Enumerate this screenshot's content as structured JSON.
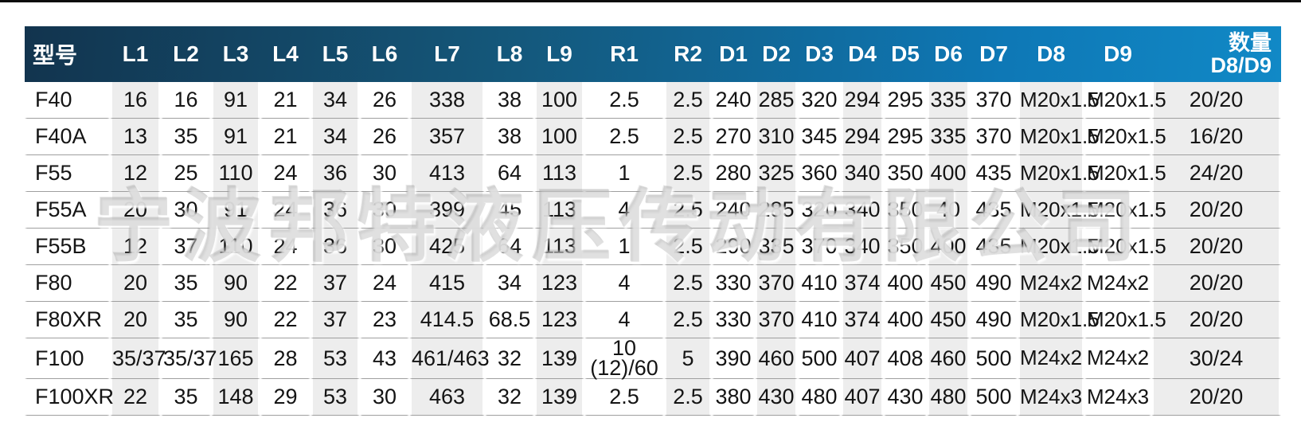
{
  "watermark": "宁波邦特液压传动有限公司",
  "colors": {
    "header_gradient_left": "#12344e",
    "header_gradient_mid": "#14577a",
    "header_gradient_right": "#1189c6",
    "header_text": "#ffffff",
    "column_stripe": "#ededed",
    "row_divider": "#9f9f9f",
    "body_text": "#141414",
    "top_rule": "#0c0c0c"
  },
  "table": {
    "columns": [
      {
        "key": "model",
        "label": "型号"
      },
      {
        "key": "L1",
        "label": "L1"
      },
      {
        "key": "L2",
        "label": "L2"
      },
      {
        "key": "L3",
        "label": "L3"
      },
      {
        "key": "L4",
        "label": "L4"
      },
      {
        "key": "L5",
        "label": "L5"
      },
      {
        "key": "L6",
        "label": "L6"
      },
      {
        "key": "L7",
        "label": "L7"
      },
      {
        "key": "L8",
        "label": "L8"
      },
      {
        "key": "L9",
        "label": "L9"
      },
      {
        "key": "R1",
        "label": "R1"
      },
      {
        "key": "R2",
        "label": "R2"
      },
      {
        "key": "D1",
        "label": "D1"
      },
      {
        "key": "D2",
        "label": "D2"
      },
      {
        "key": "D3",
        "label": "D3"
      },
      {
        "key": "D4",
        "label": "D4"
      },
      {
        "key": "D5",
        "label": "D5"
      },
      {
        "key": "D6",
        "label": "D6"
      },
      {
        "key": "D7",
        "label": "D7"
      },
      {
        "key": "D8",
        "label": "D8"
      },
      {
        "key": "D9",
        "label": "D9"
      },
      {
        "key": "qty",
        "label": "数量\nD8/D9"
      }
    ],
    "rows": [
      {
        "cells": [
          "F40",
          "16",
          "16",
          "91",
          "21",
          "34",
          "26",
          "338",
          "38",
          "100",
          "2.5",
          "2.5",
          "240",
          "285",
          "320",
          "294",
          "295",
          "335",
          "370",
          "M20x1.5",
          "M20x1.5",
          "20/20"
        ]
      },
      {
        "cells": [
          "F40A",
          "13",
          "35",
          "91",
          "21",
          "34",
          "26",
          "357",
          "38",
          "100",
          "2.5",
          "2.5",
          "270",
          "310",
          "345",
          "294",
          "295",
          "335",
          "370",
          "M20x1.5",
          "M20x1.5",
          "16/20"
        ]
      },
      {
        "cells": [
          "F55",
          "12",
          "25",
          "110",
          "24",
          "36",
          "30",
          "413",
          "64",
          "113",
          "1",
          "2.5",
          "280",
          "325",
          "360",
          "340",
          "350",
          "400",
          "435",
          "M20x1.5",
          "M20x1.5",
          "24/20"
        ]
      },
      {
        "cells": [
          "F55A",
          "20",
          "30",
          "91",
          "24",
          "36",
          "30",
          "399",
          "45",
          "113",
          "4",
          "2.5",
          "240",
          "285",
          "320",
          "340",
          "350",
          "40",
          "435",
          "M20x1.5",
          "M20x1.5",
          "20/20"
        ]
      },
      {
        "cells": [
          "F55B",
          "12",
          "37",
          "110",
          "24",
          "36",
          "30",
          "425",
          "64",
          "113",
          "1",
          "2.5",
          "290",
          "335",
          "370",
          "340",
          "350",
          "400",
          "435",
          "M20x1.5",
          "M20x1.5",
          "20/20"
        ]
      },
      {
        "cells": [
          "F80",
          "20",
          "35",
          "90",
          "22",
          "37",
          "24",
          "415",
          "34",
          "123",
          "4",
          "2.5",
          "330",
          "370",
          "410",
          "374",
          "400",
          "450",
          "490",
          "M24x2",
          "M24x2",
          "20/20"
        ]
      },
      {
        "cells": [
          "F80XR",
          "20",
          "35",
          "90",
          "22",
          "37",
          "23",
          "414.5",
          "68.5",
          "123",
          "4",
          "2.5",
          "330",
          "370",
          "410",
          "374",
          "400",
          "450",
          "490",
          "M20x1.5",
          "M20x1.5",
          "20/20"
        ]
      },
      {
        "cells": [
          "F100",
          "35/37",
          "35/37",
          "165",
          "28",
          "53",
          "43",
          "461/463",
          "32",
          "139",
          "10\n(12)/60",
          "5",
          "390",
          "460",
          "500",
          "407",
          "408",
          "460",
          "500",
          "M24x2",
          "M24x2",
          "30/24"
        ]
      },
      {
        "cells": [
          "F100XR",
          "22",
          "35",
          "148",
          "29",
          "53",
          "30",
          "463",
          "32",
          "139",
          "2.5",
          "2.5",
          "380",
          "430",
          "480",
          "407",
          "430",
          "480",
          "500",
          "M24x3",
          "M24x3",
          "20/20"
        ]
      }
    ]
  }
}
